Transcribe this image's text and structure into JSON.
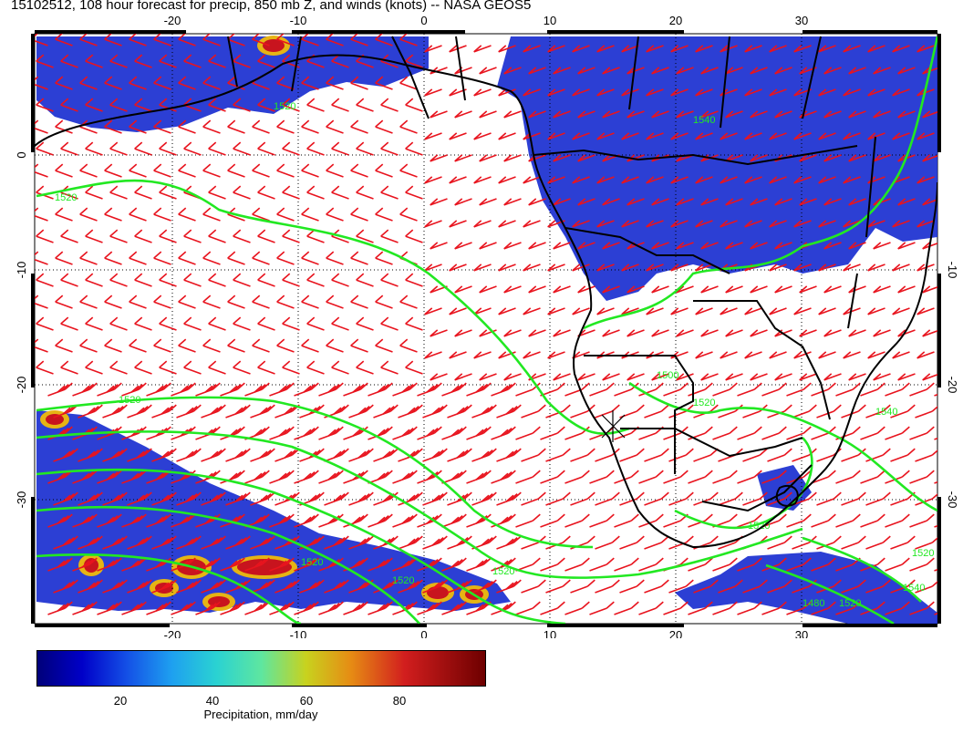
{
  "title": "15102512, 108 hour forecast for precip, 850 mb Z, and winds (knots) -- NASA GEOS5",
  "map": {
    "lon_ticks_top": [
      "-20",
      "-10",
      "0",
      "10",
      "20",
      "30"
    ],
    "lon_ticks_bottom": [
      "-20",
      "-10",
      "0",
      "10",
      "20",
      "30"
    ],
    "lat_ticks_left": [
      "0",
      "-10",
      "-20",
      "-30"
    ],
    "lat_ticks_right": [
      "-10",
      "-20",
      "-30"
    ],
    "contour_labels": [
      "1520",
      "1520",
      "1520",
      "1520",
      "1500",
      "1520",
      "1520",
      "1540",
      "1520",
      "1520",
      "1520",
      "1540",
      "1480",
      "1520",
      "1540"
    ],
    "colors": {
      "precip_light": "#1a2fd0",
      "precip_dark": "#0a1a8c",
      "wind_barb": "#e8141e",
      "contour": "#22e822",
      "coastline": "#000000"
    }
  },
  "colorbar": {
    "labels": [
      "20",
      "40",
      "60",
      "80"
    ],
    "title": "Precipitation, mm/day",
    "range": [
      0,
      100
    ]
  }
}
